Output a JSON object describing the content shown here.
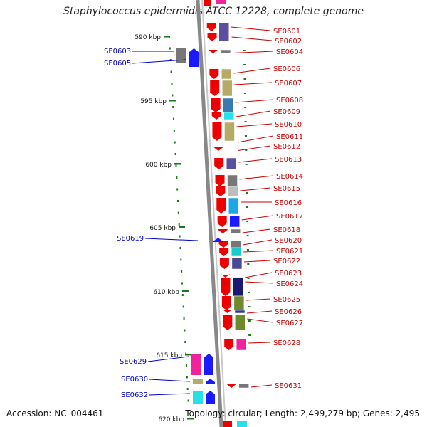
{
  "title": "Staphylococcus epidermidis ATCC 12228, complete genome",
  "accession": "Accession: NC_004461",
  "topology": "Topology: circular; Length: 2,499,279 bp; Genes: 2,495",
  "colors": {
    "forward_gene_label": "#cc0000",
    "reverse_gene_label": "#0000cc",
    "tick": "#1a7a1a",
    "backbone": "#888888"
  },
  "kbp_ticks": [
    {
      "label": "590 kbp",
      "kbp": 590
    },
    {
      "label": "595 kbp",
      "kbp": 595
    },
    {
      "label": "600 kbp",
      "kbp": 600
    },
    {
      "label": "605 kbp",
      "kbp": 605
    },
    {
      "label": "610 kbp",
      "kbp": 610
    },
    {
      "label": "615 kbp",
      "kbp": 615
    },
    {
      "label": "620 kbp",
      "kbp": 620
    }
  ],
  "forward_genes": [
    "SE0601",
    "SE0602",
    "SE0604",
    "SE0606",
    "SE0607",
    "SE0608",
    "SE0609",
    "SE0610",
    "SE0611",
    "SE0612",
    "SE0613",
    "SE0614",
    "SE0615",
    "SE0616",
    "SE0617",
    "SE0618",
    "SE0620",
    "SE0621",
    "SE0622",
    "SE0623",
    "SE0624",
    "SE0625",
    "SE0626",
    "SE0627",
    "SE0628",
    "SE0631"
  ],
  "reverse_genes": [
    "SE0603",
    "SE0605",
    "SE0619",
    "SE0629",
    "SE0630",
    "SE0632"
  ]
}
